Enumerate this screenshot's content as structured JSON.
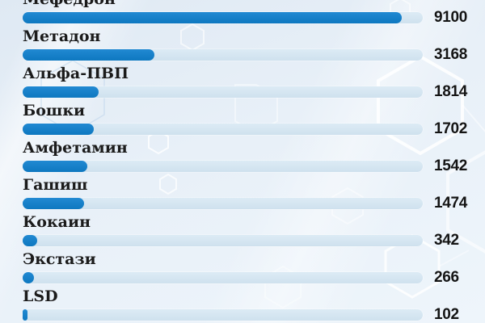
{
  "chart_data": {
    "type": "bar",
    "orientation": "horizontal",
    "categories": [
      "Мефедрон",
      "Метадон",
      "Альфа-ПВП",
      "Бошки",
      "Амфетамин",
      "Гашиш",
      "Кокаин",
      "Экстази",
      "LSD"
    ],
    "values": [
      9100,
      3168,
      1814,
      1702,
      1542,
      1474,
      342,
      266,
      102
    ],
    "scale_max": 9600,
    "xlabel": "",
    "ylabel": "",
    "grid": false,
    "legend": false,
    "value_labels_position": "right"
  },
  "colors": {
    "bar_fill": "#1180c8",
    "bar_track": "#d3e3ef",
    "background": "#e9f1f8",
    "label_text": "#1b1b1b",
    "value_text": "#141414",
    "hexagon_stroke": "#ffffff"
  }
}
